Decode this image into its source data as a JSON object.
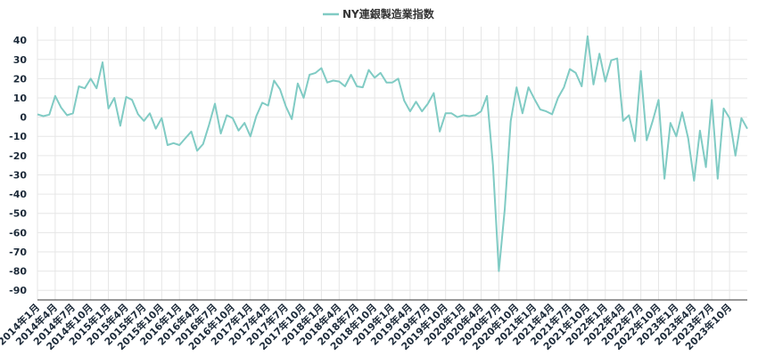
{
  "chart_data": {
    "type": "line",
    "legend": {
      "position": "top-center"
    },
    "series": [
      {
        "name": "NY連銀製造業指数",
        "color": "#80cbc4",
        "values": [
          1.5,
          0.5,
          1.3,
          11,
          5,
          1,
          2,
          16,
          15,
          20,
          15,
          28.5,
          4.5,
          10,
          -4.5,
          10.5,
          9,
          1.5,
          -2,
          2,
          -6,
          -0.5,
          -14.5,
          -13.5,
          -14.5,
          -11,
          -7.5,
          -17.5,
          -14,
          -4,
          7,
          -8.5,
          1,
          -0.5,
          -7,
          -3,
          -10,
          0.5,
          7.5,
          6,
          19,
          14.5,
          5.5,
          -1,
          17.5,
          10,
          22,
          23,
          25.5,
          18,
          19,
          18.5,
          16,
          22,
          16,
          15.5,
          24.5,
          20.5,
          23,
          18,
          18,
          20,
          8.5,
          3,
          8,
          3,
          7,
          12.5,
          -7.5,
          2,
          2,
          0,
          1,
          0.5,
          1,
          3,
          11,
          -25,
          -80,
          -48,
          -2,
          15.5,
          2,
          15.5,
          9.5,
          4,
          3,
          1.5,
          10,
          15.5,
          25,
          23,
          16,
          42,
          17,
          33,
          18.5,
          29.5,
          30.5,
          -2,
          1,
          -12.5,
          24,
          -12,
          -2,
          9,
          -32,
          -3,
          -10,
          2.5,
          -11,
          -33,
          -7,
          -26,
          9,
          -32,
          4.5,
          -0.5,
          -20,
          -0.5,
          -6
        ]
      }
    ],
    "x_labels": [
      "2014年1月",
      "2014年4月",
      "2014年7月",
      "2014年10月",
      "2015年1月",
      "2015年4月",
      "2015年7月",
      "2015年10月",
      "2016年1月",
      "2016年4月",
      "2016年7月",
      "2016年10月",
      "2017年1月",
      "2017年4月",
      "2017年7月",
      "2017年10月",
      "2018年1月",
      "2018年4月",
      "2018年7月",
      "2018年10月",
      "2019年1月",
      "2019年4月",
      "2019年7月",
      "2019年10月",
      "2020年1月",
      "2020年4月",
      "2020年7月",
      "2020年10月",
      "2021年1月",
      "2021年4月",
      "2021年7月",
      "2021年10月",
      "2022年1月",
      "2022年4月",
      "2022年7月",
      "2022年10月",
      "2023年1月",
      "2023年4月",
      "2023年7月",
      "2023年10月"
    ],
    "y_ticks": [
      40,
      30,
      20,
      10,
      0,
      -10,
      -20,
      -30,
      -40,
      -50,
      -60,
      -70,
      -80,
      -90
    ],
    "ylim": [
      -95,
      47
    ],
    "grid": true
  }
}
